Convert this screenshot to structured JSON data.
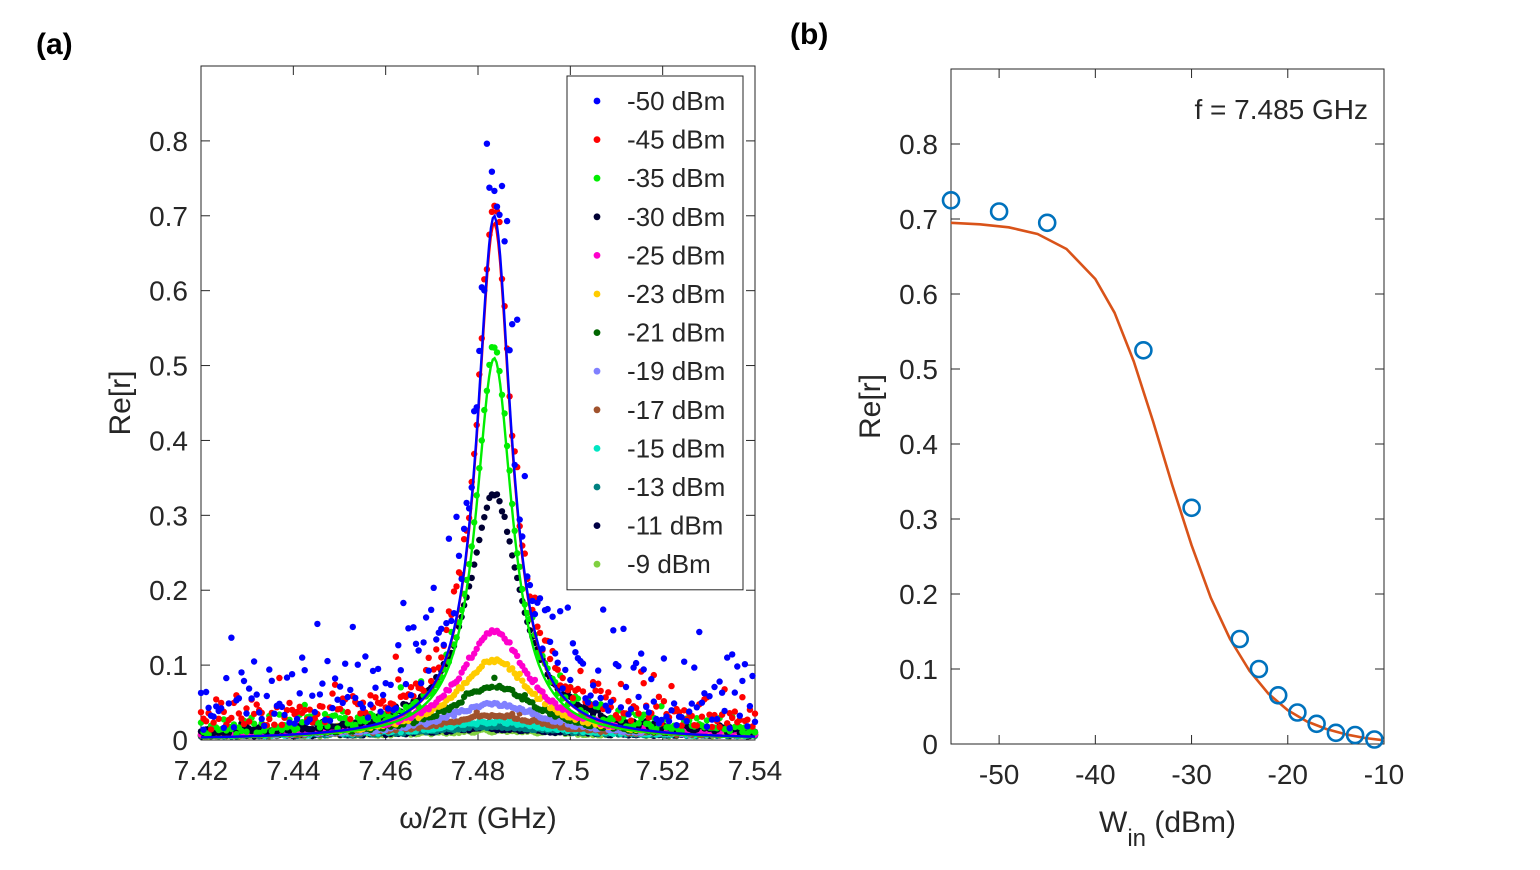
{
  "panels": [
    {
      "label": "(a)"
    },
    {
      "label": "(b)"
    }
  ],
  "chart_data": [
    {
      "type": "scatter",
      "panel": "(a)",
      "title": "",
      "xlabel": "ω/2π (GHz)",
      "ylabel": "Re[r]",
      "xlim": [
        7.42,
        7.54
      ],
      "ylim": [
        0,
        0.9
      ],
      "xticks": [
        7.42,
        7.44,
        7.46,
        7.48,
        7.5,
        7.52,
        7.54
      ],
      "xtick_labels": [
        "7.42",
        "7.44",
        "7.46",
        "7.48",
        "7.5",
        "7.52",
        "7.54"
      ],
      "yticks": [
        0,
        0.1,
        0.2,
        0.3,
        0.4,
        0.5,
        0.6,
        0.7,
        0.8
      ],
      "ytick_labels": [
        "0",
        "0.1",
        "0.2",
        "0.3",
        "0.4",
        "0.5",
        "0.6",
        "0.7",
        "0.8"
      ],
      "legend_position": "top-right",
      "model": "lorentzian",
      "center_ghz": 7.4835,
      "series": [
        {
          "name": "-50 dBm",
          "color": "#0000ff",
          "peak": 0.7,
          "hwhm": 0.0045,
          "noise": 0.07,
          "fit": true
        },
        {
          "name": "-45 dBm",
          "color": "#ff0000",
          "peak": 0.69,
          "hwhm": 0.0045,
          "noise": 0.03,
          "fit": true
        },
        {
          "name": "-35 dBm",
          "color": "#00ee00",
          "peak": 0.51,
          "hwhm": 0.0048,
          "noise": 0.015,
          "fit": true
        },
        {
          "name": "-30 dBm",
          "color": "#000033",
          "peak": 0.32,
          "hwhm": 0.0068,
          "noise": 0.006,
          "fit": false
        },
        {
          "name": "-25 dBm",
          "color": "#ff00cc",
          "peak": 0.14,
          "hwhm": 0.0085,
          "noise": 0.004,
          "fit": false
        },
        {
          "name": "-23 dBm",
          "color": "#ffcc00",
          "peak": 0.1,
          "hwhm": 0.0095,
          "noise": 0.004,
          "fit": false
        },
        {
          "name": "-21 dBm",
          "color": "#006600",
          "peak": 0.065,
          "hwhm": 0.011,
          "noise": 0.004,
          "fit": false
        },
        {
          "name": "-19 dBm",
          "color": "#8080ff",
          "peak": 0.042,
          "hwhm": 0.012,
          "noise": 0.004,
          "fit": false
        },
        {
          "name": "-17 dBm",
          "color": "#a0522d",
          "peak": 0.027,
          "hwhm": 0.013,
          "noise": 0.004,
          "fit": false
        },
        {
          "name": "-15 dBm",
          "color": "#00e6c3",
          "peak": 0.018,
          "hwhm": 0.014,
          "noise": 0.004,
          "fit": false
        },
        {
          "name": "-13 dBm",
          "color": "#008080",
          "peak": 0.012,
          "hwhm": 0.015,
          "noise": 0.004,
          "fit": false
        },
        {
          "name": "-11 dBm",
          "color": "#000044",
          "peak": 0.009,
          "hwhm": 0.016,
          "noise": 0.004,
          "fit": false
        },
        {
          "name": "-9 dBm",
          "color": "#80d040",
          "peak": 0.006,
          "hwhm": 0.017,
          "noise": 0.004,
          "fit": false
        }
      ]
    },
    {
      "type": "scatter",
      "panel": "(b)",
      "title": "",
      "annotation": "f = 7.485 GHz",
      "xlabel": "W",
      "xlabel_subscript": "in",
      "xlabel_unit": " (dBm)",
      "ylabel": "Re[r]",
      "xlim": [
        -55,
        -10
      ],
      "ylim": [
        0,
        0.9
      ],
      "xticks": [
        -50,
        -40,
        -30,
        -20,
        -10
      ],
      "xtick_labels": [
        "-50",
        "-40",
        "-30",
        "-20",
        "-10"
      ],
      "yticks": [
        0,
        0.1,
        0.2,
        0.3,
        0.4,
        0.5,
        0.6,
        0.7,
        0.8
      ],
      "ytick_labels": [
        "0",
        "0.1",
        "0.2",
        "0.3",
        "0.4",
        "0.5",
        "0.6",
        "0.7",
        "0.8"
      ],
      "marker_color": "#0072bd",
      "fit_color": "#d95319",
      "x": [
        -55,
        -50,
        -45,
        -35,
        -30,
        -25,
        -23,
        -21,
        -19,
        -17,
        -15,
        -13,
        -11
      ],
      "y": [
        0.725,
        0.71,
        0.695,
        0.525,
        0.315,
        0.14,
        0.1,
        0.065,
        0.042,
        0.027,
        0.015,
        0.012,
        0.006
      ],
      "fit_curve": {
        "x": [
          -55,
          -52,
          -49,
          -46,
          -43,
          -40,
          -38,
          -36,
          -34,
          -32,
          -30,
          -28,
          -26,
          -24,
          -22,
          -20,
          -18,
          -16,
          -14,
          -12,
          -10
        ],
        "y": [
          0.695,
          0.693,
          0.689,
          0.68,
          0.66,
          0.62,
          0.575,
          0.51,
          0.43,
          0.345,
          0.265,
          0.195,
          0.14,
          0.098,
          0.067,
          0.045,
          0.03,
          0.02,
          0.013,
          0.008,
          0.005
        ]
      }
    }
  ]
}
